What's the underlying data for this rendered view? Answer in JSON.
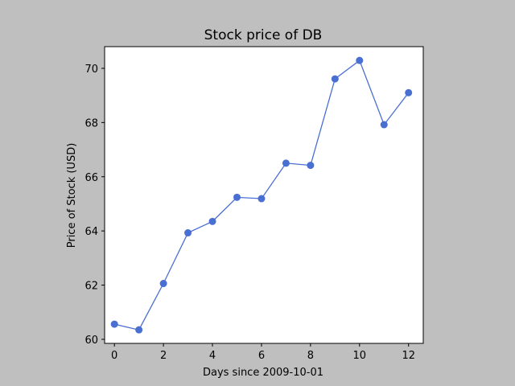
{
  "chart_data": {
    "type": "line",
    "title": "Stock price of DB",
    "xlabel": "Days since 2009-10-01",
    "ylabel": "Price of Stock (USD)",
    "xlim": [
      -0.4,
      12.6
    ],
    "ylim": [
      59.85,
      70.8
    ],
    "x_ticks": [
      0,
      2,
      4,
      6,
      8,
      10,
      12
    ],
    "y_ticks": [
      60,
      62,
      64,
      66,
      68,
      70
    ],
    "grid": false,
    "legend": "none",
    "series": [
      {
        "x": [
          0,
          1,
          2,
          3,
          4,
          5,
          6,
          7,
          8,
          9,
          10,
          11,
          12
        ],
        "y": [
          60.56,
          60.35,
          62.06,
          63.93,
          64.35,
          65.24,
          65.19,
          66.5,
          66.42,
          69.61,
          70.29,
          67.92,
          69.1
        ],
        "color": "#4a6fd3",
        "marker": "circle"
      }
    ]
  }
}
